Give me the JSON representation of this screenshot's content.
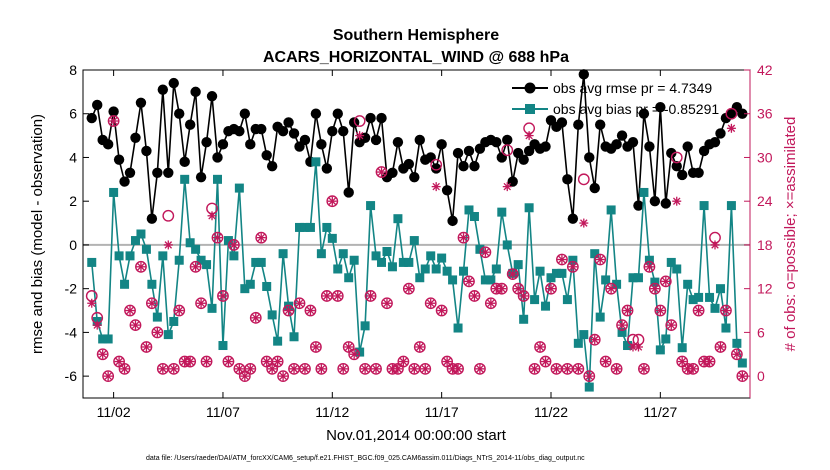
{
  "chart_data": {
    "type": "line",
    "title": "Southern Hemisphere",
    "subtitle": "ACARS_HORIZONTAL_WIND @ 688 hPa",
    "xlabel": "Nov.01,2014 00:00:00 start",
    "ylabel": "rmse and bias (model - observation)",
    "y2label": "# of obs: o=possible; ×=assimilated",
    "xlim": [
      0.6,
      31.1
    ],
    "ylim": [
      -7,
      8
    ],
    "y2lim": [
      -3,
      42
    ],
    "xticks": [
      2,
      7,
      12,
      17,
      22,
      27
    ],
    "xtick_labels": [
      "11/02",
      "11/07",
      "11/12",
      "11/17",
      "11/22",
      "11/27"
    ],
    "yticks": [
      -6,
      -4,
      -2,
      0,
      2,
      4,
      6,
      8
    ],
    "ytick_labels": [
      "-6",
      "-4",
      "-2",
      "0",
      "2",
      "4",
      "6",
      "8"
    ],
    "y2ticks": [
      0,
      6,
      12,
      18,
      24,
      30,
      36,
      42
    ],
    "y2tick_labels": [
      "0",
      "6",
      "12",
      "18",
      "24",
      "30",
      "36",
      "42"
    ],
    "zero_line": true,
    "grid": false,
    "legend_position": "top-right",
    "footnote": "data file: /Users/raeder/DAI/ATM_forcXX/CAM6_setup/f.e21.FHIST_BGC.f09_025.CAM6assim.011/Diags_NTrS_2014-11/obs_diag_output.nc",
    "colors": {
      "rmse": "#000000",
      "bias": "#138585",
      "obs": "#c2185b",
      "zero": "#b3b3b3"
    },
    "series": [
      {
        "name": "obs avg rmse pr = 4.7349",
        "x": [
          1,
          1.25,
          1.5,
          1.75,
          2,
          2.25,
          2.5,
          2.75,
          3,
          3.25,
          3.5,
          3.75,
          4,
          4.25,
          4.5,
          4.75,
          5,
          5.25,
          5.5,
          5.75,
          6,
          6.25,
          6.5,
          6.75,
          7,
          7.25,
          7.5,
          7.75,
          8,
          8.25,
          8.5,
          8.75,
          9,
          9.25,
          9.5,
          9.75,
          10,
          10.25,
          10.5,
          10.75,
          11,
          11.25,
          11.5,
          11.75,
          12,
          12.25,
          12.5,
          12.75,
          13,
          13.25,
          13.5,
          13.75,
          14,
          14.25,
          14.5,
          14.75,
          15,
          15.25,
          15.5,
          15.75,
          16,
          16.25,
          16.5,
          16.75,
          17,
          17.25,
          17.5,
          17.75,
          18,
          18.25,
          18.5,
          18.75,
          19,
          19.25,
          19.5,
          19.75,
          20,
          20.25,
          20.5,
          20.75,
          21,
          21.25,
          21.5,
          21.75,
          22,
          22.25,
          22.5,
          22.75,
          23,
          23.25,
          23.5,
          23.75,
          24,
          24.25,
          24.5,
          24.75,
          25,
          25.25,
          25.5,
          25.75,
          26,
          26.25,
          26.5,
          26.75,
          27,
          27.25,
          27.5,
          27.75,
          28,
          28.25,
          28.5,
          28.75,
          29,
          29.25,
          29.5,
          29.75,
          30,
          30.25,
          30.5,
          30.75
        ],
        "values": [
          5.8,
          6.4,
          4.8,
          4.6,
          6.1,
          3.9,
          2.9,
          3.3,
          4.9,
          6.5,
          4.3,
          1.2,
          3.3,
          7.1,
          3.3,
          7.4,
          6.0,
          3.8,
          5.5,
          7.0,
          3.1,
          4.7,
          6.8,
          4.0,
          4.6,
          5.2,
          5.3,
          5.2,
          6.0,
          4.6,
          5.3,
          5.3,
          4.1,
          3.6,
          5.4,
          5.2,
          5.6,
          5.1,
          4.5,
          4.8,
          3.8,
          6.0,
          4.6,
          3.5,
          5.2,
          6.0,
          5.2,
          2.4,
          5.6,
          4.7,
          4.9,
          5.8,
          4.8,
          5.8,
          3.1,
          3.3,
          4.7,
          3.5,
          3.7,
          3.1,
          4.8,
          3.9,
          4.0,
          3.5,
          4.6,
          2.5,
          1.1,
          4.2,
          3.6,
          4.3,
          3.6,
          4.4,
          4.7,
          4.8,
          4.7,
          4.0,
          4.8,
          2.9,
          4.2,
          3.9,
          4.3,
          4.6,
          4.4,
          4.5,
          5.7,
          5.4,
          5.6,
          3.0,
          1.2,
          5.5,
          7.8,
          4.0,
          2.6,
          5.5,
          4.5,
          4.4,
          4.6,
          5.0,
          4.5,
          4.7,
          1.8,
          6.0,
          4.5,
          2.0,
          6.3,
          1.9,
          4.2,
          3.6,
          3.2,
          4.5,
          3.3,
          3.3,
          4.3,
          4.6,
          4.7,
          5.1,
          5.8,
          6.0,
          6.3,
          6.0
        ]
      },
      {
        "name": "obs avg bias pr = -0.85291",
        "x": [
          1,
          1.25,
          1.5,
          1.75,
          2,
          2.25,
          2.5,
          2.75,
          3,
          3.25,
          3.5,
          3.75,
          4,
          4.25,
          4.5,
          4.75,
          5,
          5.25,
          5.5,
          5.75,
          6,
          6.25,
          6.5,
          6.75,
          7,
          7.25,
          7.5,
          7.75,
          8,
          8.25,
          8.5,
          8.75,
          9,
          9.25,
          9.5,
          9.75,
          10,
          10.25,
          10.5,
          10.75,
          11,
          11.25,
          11.5,
          11.75,
          12,
          12.25,
          12.5,
          12.75,
          13,
          13.25,
          13.5,
          13.75,
          14,
          14.25,
          14.5,
          14.75,
          15,
          15.25,
          15.5,
          15.75,
          16,
          16.25,
          16.5,
          16.75,
          17,
          17.25,
          17.5,
          17.75,
          18,
          18.25,
          18.5,
          18.75,
          19,
          19.25,
          19.5,
          19.75,
          20,
          20.25,
          20.5,
          20.75,
          21,
          21.25,
          21.5,
          21.75,
          22,
          22.25,
          22.5,
          22.75,
          23,
          23.25,
          23.5,
          23.75,
          24,
          24.25,
          24.5,
          24.75,
          25,
          25.25,
          25.5,
          25.75,
          26,
          26.25,
          26.5,
          26.75,
          27,
          27.25,
          27.5,
          27.75,
          28,
          28.25,
          28.5,
          28.75,
          29,
          29.25,
          29.5,
          29.75,
          30,
          30.25,
          30.5,
          30.75
        ],
        "values": [
          -0.8,
          -3.5,
          -4.3,
          -4.3,
          2.4,
          -0.5,
          -1.8,
          -0.5,
          0.2,
          0.5,
          -0.2,
          -1.8,
          -3.3,
          -0.5,
          -4.1,
          -3.5,
          -0.7,
          3.0,
          0.1,
          -0.2,
          -0.7,
          -0.9,
          -2.9,
          3.0,
          -4.6,
          0.2,
          -0.5,
          2.6,
          -2.0,
          -1.8,
          -0.8,
          -0.8,
          -1.9,
          -3.2,
          -4.4,
          -0.4,
          -2.8,
          -4.2,
          0.8,
          0.8,
          0.8,
          3.8,
          -0.4,
          0.8,
          0.3,
          -1.1,
          -0.4,
          -1.5,
          -0.7,
          -4.9,
          -3.7,
          1.8,
          -0.5,
          -0.8,
          -0.3,
          -1.0,
          1.2,
          -0.8,
          -0.8,
          0.2,
          -1.5,
          -1.1,
          -0.5,
          -1.1,
          -0.6,
          -1.2,
          -1.6,
          -3.8,
          -1.2,
          1.6,
          1.3,
          -0.2,
          -1.6,
          -1.6,
          -1.1,
          1.5,
          0.0,
          -1.3,
          -0.9,
          -3.4,
          1.7,
          -2.5,
          -1.2,
          -2.8,
          -1.5,
          -1.3,
          -1.3,
          -2.5,
          -0.7,
          -4.5,
          -4.1,
          -6.5,
          -0.4,
          -3.3,
          -1.6,
          1.6,
          -1.8,
          -4.0,
          -4.6,
          -1.5,
          -1.5,
          2.4,
          -0.7,
          -1.7,
          -4.8,
          -4.3,
          -0.8,
          -1.1,
          -4.7,
          -1.8,
          -2.5,
          -2.4,
          1.8,
          -2.4,
          -2.9,
          -2.0,
          -3.8,
          1.8,
          -4.5,
          -5.4
        ]
      },
      {
        "name": "# obs possible",
        "x": [
          1,
          1.25,
          1.5,
          1.75,
          2,
          2.25,
          2.5,
          2.75,
          3,
          3.25,
          3.5,
          3.75,
          4,
          4.25,
          4.5,
          4.75,
          5,
          5.25,
          5.5,
          5.75,
          6,
          6.25,
          6.5,
          6.75,
          7,
          7.25,
          7.5,
          7.75,
          8,
          8.25,
          8.5,
          8.75,
          9,
          9.25,
          9.5,
          9.75,
          10,
          10.25,
          10.5,
          10.75,
          11,
          11.25,
          11.5,
          11.75,
          12,
          12.25,
          12.5,
          12.75,
          13,
          13.25,
          13.5,
          13.75,
          14,
          14.25,
          14.5,
          14.75,
          15,
          15.25,
          15.5,
          15.75,
          16,
          16.25,
          16.5,
          16.75,
          17,
          17.25,
          17.5,
          17.75,
          18,
          18.25,
          18.5,
          18.75,
          19,
          19.25,
          19.5,
          19.75,
          20,
          20.25,
          20.5,
          20.75,
          21,
          21.25,
          21.5,
          21.75,
          22,
          22.25,
          22.5,
          22.75,
          23,
          23.25,
          23.5,
          23.75,
          24,
          24.25,
          24.5,
          24.75,
          25,
          25.25,
          25.5,
          25.75,
          26,
          26.25,
          26.5,
          26.75,
          27,
          27.25,
          27.5,
          27.75,
          28,
          28.25,
          28.5,
          28.75,
          29,
          29.25,
          29.5,
          29.75,
          30,
          30.25,
          30.5,
          30.75
        ],
        "values": [
          11,
          8,
          3,
          0,
          35,
          2,
          1,
          9,
          7,
          15,
          4,
          10,
          6,
          1,
          22,
          1,
          9,
          2,
          2,
          15,
          10,
          2,
          23,
          19,
          11,
          2,
          18,
          1,
          0,
          1,
          8,
          19,
          2,
          1,
          2,
          0,
          9,
          1,
          10,
          1,
          9,
          4,
          1,
          11,
          24,
          11,
          1,
          4,
          3,
          35,
          1,
          11,
          1,
          28,
          10,
          1,
          1,
          2,
          12,
          1,
          4,
          1,
          10,
          29,
          9,
          2,
          1,
          1,
          19,
          13,
          11,
          1,
          17,
          10,
          12,
          12,
          31,
          14,
          12,
          11,
          34,
          1,
          4,
          2,
          12,
          1,
          16,
          1,
          15,
          1,
          27,
          0,
          5,
          16,
          2,
          12,
          1,
          7,
          9,
          5,
          5,
          1,
          15,
          12,
          9,
          13,
          7,
          30,
          2,
          1,
          1,
          9,
          2,
          2,
          19,
          4,
          9,
          36,
          3,
          0
        ]
      },
      {
        "name": "# obs assimilated",
        "x": [
          1,
          1.25,
          1.5,
          1.75,
          2,
          2.25,
          2.5,
          2.75,
          3,
          3.25,
          3.5,
          3.75,
          4,
          4.25,
          4.5,
          4.75,
          5,
          5.25,
          5.5,
          5.75,
          6,
          6.25,
          6.5,
          6.75,
          7,
          7.25,
          7.5,
          7.75,
          8,
          8.25,
          8.5,
          8.75,
          9,
          9.25,
          9.5,
          9.75,
          10,
          10.25,
          10.5,
          10.75,
          11,
          11.25,
          11.5,
          11.75,
          12,
          12.25,
          12.5,
          12.75,
          13,
          13.25,
          13.5,
          13.75,
          14,
          14.25,
          14.5,
          14.75,
          15,
          15.25,
          15.5,
          15.75,
          16,
          16.25,
          16.5,
          16.75,
          17,
          17.25,
          17.5,
          17.75,
          18,
          18.25,
          18.5,
          18.75,
          19,
          19.25,
          19.5,
          19.75,
          20,
          20.25,
          20.5,
          20.75,
          21,
          21.25,
          21.5,
          21.75,
          22,
          22.25,
          22.5,
          22.75,
          23,
          23.25,
          23.5,
          23.75,
          24,
          24.25,
          24.5,
          24.75,
          25,
          25.25,
          25.5,
          25.75,
          26,
          26.25,
          26.5,
          26.75,
          27,
          27.25,
          27.5,
          27.75,
          28,
          28.25,
          28.5,
          28.75,
          29,
          29.25,
          29.5,
          29.75,
          30,
          30.25,
          30.5,
          30.75
        ],
        "values": [
          10,
          7,
          3,
          0,
          35,
          2,
          1,
          9,
          7,
          15,
          4,
          10,
          6,
          1,
          18,
          1,
          9,
          2,
          2,
          15,
          10,
          2,
          22,
          19,
          11,
          2,
          18,
          1,
          0,
          1,
          8,
          19,
          2,
          1,
          2,
          0,
          9,
          1,
          10,
          1,
          9,
          4,
          1,
          11,
          24,
          11,
          1,
          4,
          3,
          33,
          1,
          11,
          1,
          28,
          10,
          1,
          1,
          2,
          12,
          1,
          4,
          1,
          10,
          26,
          9,
          2,
          1,
          1,
          19,
          13,
          11,
          1,
          17,
          10,
          12,
          12,
          26,
          14,
          12,
          11,
          33,
          1,
          4,
          2,
          12,
          1,
          16,
          1,
          15,
          1,
          21,
          0,
          5,
          16,
          2,
          12,
          1,
          7,
          9,
          4,
          4,
          1,
          15,
          12,
          9,
          13,
          7,
          24,
          2,
          1,
          1,
          9,
          2,
          2,
          18,
          4,
          9,
          34,
          3,
          0
        ]
      }
    ]
  }
}
